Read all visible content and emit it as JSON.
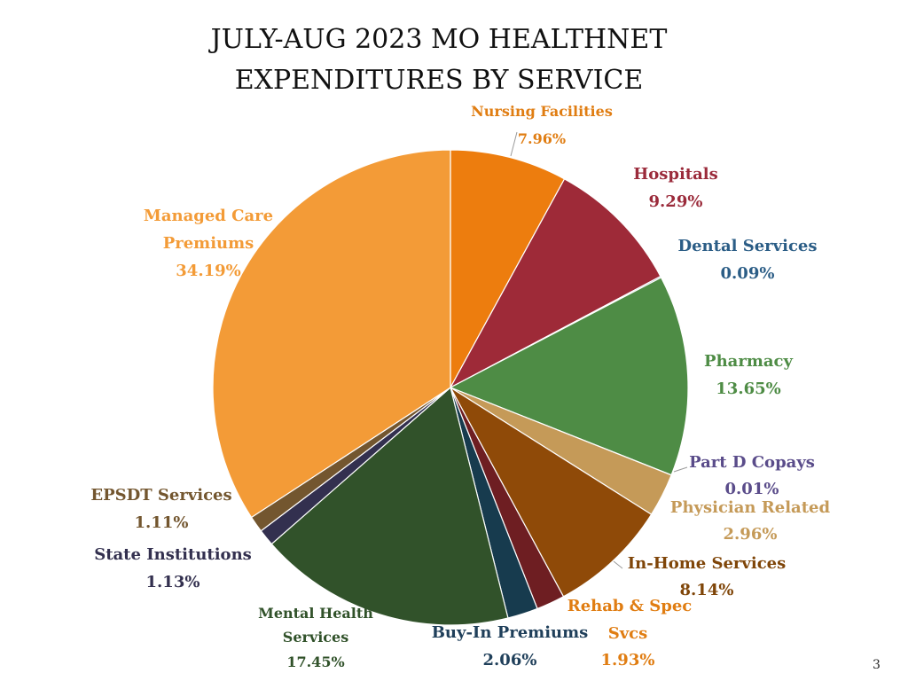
{
  "page": {
    "number": "3"
  },
  "chart_data": {
    "type": "pie",
    "title_lines": [
      "JULY-AUG 2023 MO HEALTHNET",
      "EXPENDITURES BY SERVICE"
    ],
    "slices": [
      {
        "label": "Nursing Facilities",
        "value": 7.96,
        "value_label": "7.96%",
        "color": "#ED7D0E"
      },
      {
        "label": "Hospitals",
        "value": 9.29,
        "value_label": "9.29%",
        "color": "#9E2A38"
      },
      {
        "label": "Dental Services",
        "value": 0.09,
        "value_label": "0.09%",
        "color": "#2E5B82"
      },
      {
        "label": "Pharmacy",
        "value": 13.65,
        "value_label": "13.65%",
        "color": "#4E8C45"
      },
      {
        "label": "Part D Copays",
        "value": 0.01,
        "value_label": "0.01%",
        "color": "#5B4F8A"
      },
      {
        "label": "Physician Related",
        "value": 2.96,
        "value_label": "2.96%",
        "color": "#C59A58"
      },
      {
        "label": "In-Home Services",
        "value": 8.14,
        "value_label": "8.14%",
        "color": "#8F4A08"
      },
      {
        "label": "Rehab & Spec Svcs",
        "value": 1.93,
        "value_label": "1.93%",
        "color": "#6E1E22"
      },
      {
        "label": "Buy-In Premiums",
        "value": 2.06,
        "value_label": "2.06%",
        "color": "#173B4E"
      },
      {
        "label": "Mental Health Services",
        "value": 17.45,
        "value_label": "17.45%",
        "color": "#31522A"
      },
      {
        "label": "State Institutions",
        "value": 1.13,
        "value_label": "1.13%",
        "color": "#33304F"
      },
      {
        "label": "EPSDT Services",
        "value": 1.11,
        "value_label": "1.11%",
        "color": "#73562F"
      },
      {
        "label": "Managed Care Premiums",
        "value": 34.19,
        "value_label": "34.19%",
        "color": "#F39B37"
      }
    ],
    "label_colors": {
      "Nursing Facilities": "#E07D12",
      "Hospitals": "#9B2B3B",
      "Dental Services": "#2B5D86",
      "Pharmacy": "#4E8C45",
      "Part D Copays": "#5A4C8A",
      "Physician Related": "#C59A58",
      "In-Home Services": "#7F4508",
      "Rehab & Spec Svcs": "#E07D12",
      "Buy-In Premiums": "#1F3F5A",
      "Mental Health Services": "#31522A",
      "State Institutions": "#33304F",
      "EPSDT Services": "#73562F",
      "Managed Care Premiums": "#F39B37"
    }
  }
}
